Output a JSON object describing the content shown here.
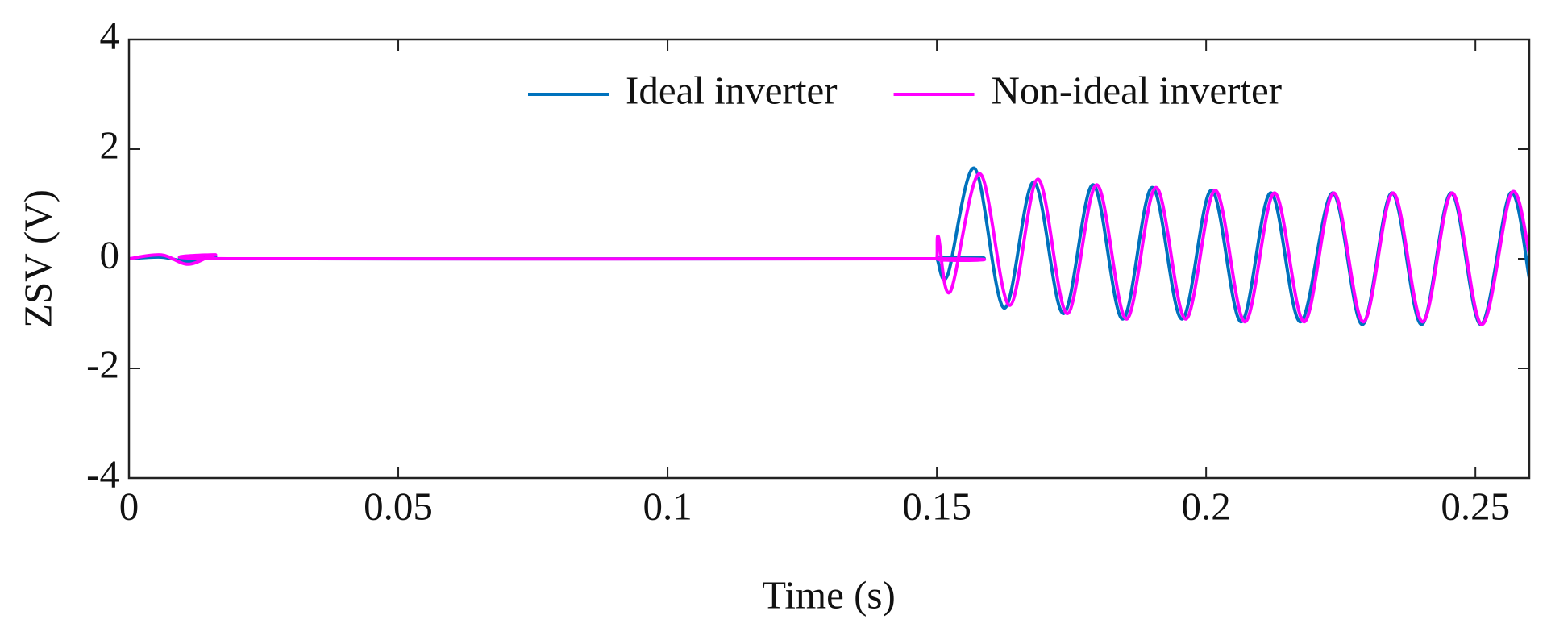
{
  "chart_data": {
    "type": "line",
    "x_label": "Time (s)",
    "y_label": "ZSV (V)",
    "xlim": [
      0,
      0.26
    ],
    "xticks": [
      0,
      0.05,
      0.1,
      0.15,
      0.2,
      0.25
    ],
    "ylim": [
      -4,
      4
    ],
    "yticks": [
      -4,
      -2,
      0,
      2,
      4
    ],
    "grid": false,
    "legend": "top-right",
    "series": [
      {
        "name": "Ideal inverter",
        "color": "#0072bd",
        "x": [
          0,
          0.006,
          0.011,
          0.016,
          0.02,
          0.149,
          0.15,
          0.152,
          0.157,
          0.1625,
          0.168,
          0.1735,
          0.179,
          0.1845,
          0.19,
          0.1955,
          0.201,
          0.2065,
          0.212,
          0.2175,
          0.2235,
          0.229,
          0.2345,
          0.24,
          0.2455,
          0.251,
          0.2565,
          0.26
        ],
        "values": [
          0,
          0.03,
          -0.05,
          0.04,
          0,
          0,
          0,
          -0.3,
          1.65,
          -0.9,
          1.4,
          -1.0,
          1.35,
          -1.1,
          1.3,
          -1.1,
          1.25,
          -1.15,
          1.2,
          -1.15,
          1.2,
          -1.2,
          1.2,
          -1.2,
          1.2,
          -1.2,
          1.2,
          -0.35
        ]
      },
      {
        "name": "Non-ideal inverter",
        "color": "#ff00ff",
        "x": [
          0,
          0.006,
          0.011,
          0.016,
          0.02,
          0.149,
          0.15,
          0.1503,
          0.1525,
          0.158,
          0.1635,
          0.1688,
          0.1742,
          0.1797,
          0.1852,
          0.1907,
          0.1962,
          0.2017,
          0.2072,
          0.2127,
          0.2182,
          0.2237,
          0.2292,
          0.2347,
          0.2402,
          0.2457,
          0.2512,
          0.2567,
          0.26
        ],
        "values": [
          0,
          0.07,
          -0.1,
          0.07,
          0,
          0,
          0,
          0.4,
          -0.6,
          1.55,
          -0.85,
          1.45,
          -1.0,
          1.35,
          -1.1,
          1.3,
          -1.1,
          1.25,
          -1.15,
          1.2,
          -1.15,
          1.2,
          -1.15,
          1.2,
          -1.15,
          1.2,
          -1.2,
          1.2,
          0.1
        ]
      }
    ]
  }
}
